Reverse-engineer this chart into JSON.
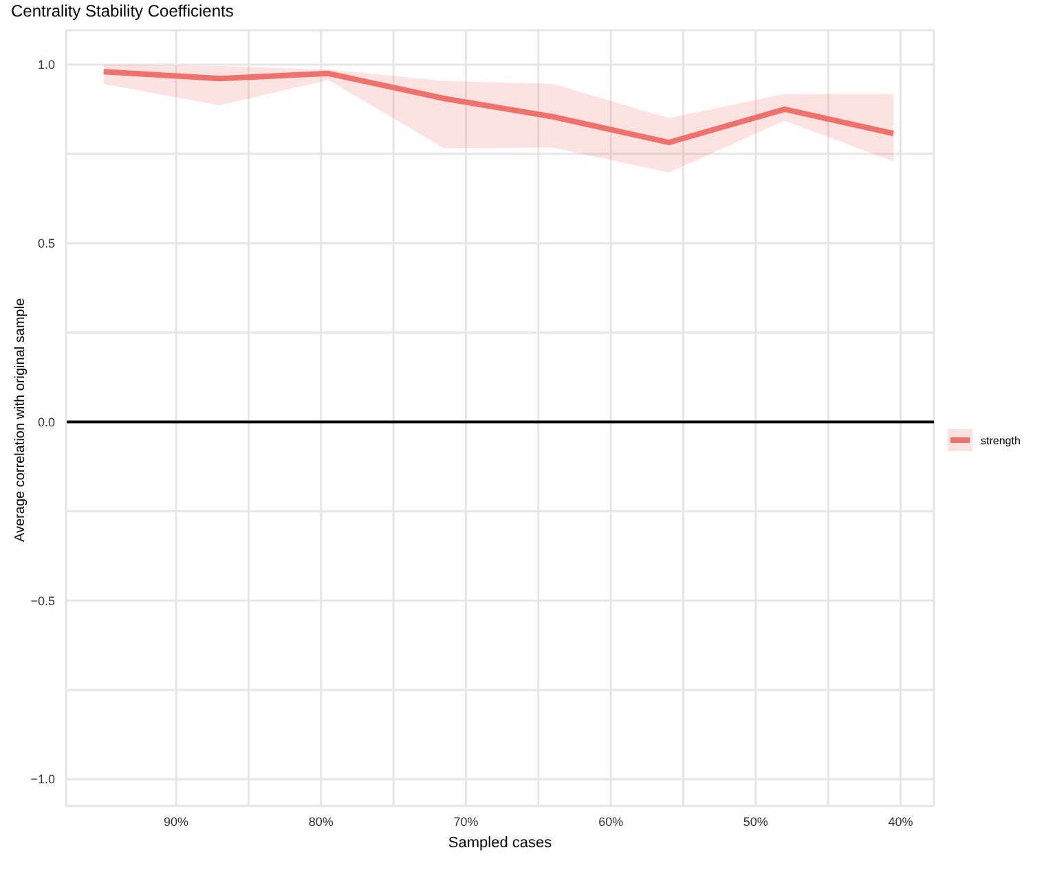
{
  "chart_data": {
    "type": "line",
    "title": "Centrality Stability Coefficients",
    "xlabel": "Sampled cases",
    "ylabel": "Average correlation with original sample",
    "x": [
      95,
      87,
      79.5,
      71.5,
      64,
      56,
      48,
      40.5
    ],
    "series": [
      {
        "name": "strength",
        "color": "#f0716a",
        "values": [
          0.98,
          0.961,
          0.975,
          0.905,
          0.854,
          0.782,
          0.875,
          0.807
        ],
        "lower": [
          0.946,
          0.886,
          0.957,
          0.766,
          0.768,
          0.698,
          0.843,
          0.729
        ],
        "upper": [
          1.0,
          0.996,
          0.986,
          0.954,
          0.946,
          0.85,
          0.918,
          0.918
        ]
      }
    ],
    "xlim": [
      97.6,
      37.7
    ],
    "ylim": [
      -1.075,
      1.096
    ],
    "xticks": [
      {
        "value": 90,
        "label": "90%"
      },
      {
        "value": 85,
        "label": null
      },
      {
        "value": 80,
        "label": "80%"
      },
      {
        "value": 75,
        "label": null
      },
      {
        "value": 70,
        "label": "70%"
      },
      {
        "value": 65,
        "label": null
      },
      {
        "value": 60,
        "label": "60%"
      },
      {
        "value": 55,
        "label": null
      },
      {
        "value": 50,
        "label": "50%"
      },
      {
        "value": 45,
        "label": null
      },
      {
        "value": 40,
        "label": "40%"
      }
    ],
    "yticks": [
      {
        "value": -1,
        "label": "−1.0"
      },
      {
        "value": -0.75,
        "label": null
      },
      {
        "value": -0.5,
        "label": "−0.5"
      },
      {
        "value": -0.25,
        "label": null
      },
      {
        "value": 0,
        "label": "0.0"
      },
      {
        "value": 0.25,
        "label": null
      },
      {
        "value": 0.5,
        "label": "0.5"
      },
      {
        "value": 0.75,
        "label": null
      },
      {
        "value": 1,
        "label": "1.0"
      }
    ],
    "ref_lines": [
      {
        "axis": "y",
        "value": 0,
        "color": "#000000"
      }
    ],
    "grid": true,
    "legend": "right",
    "marker": "none",
    "line_style": "solid"
  }
}
